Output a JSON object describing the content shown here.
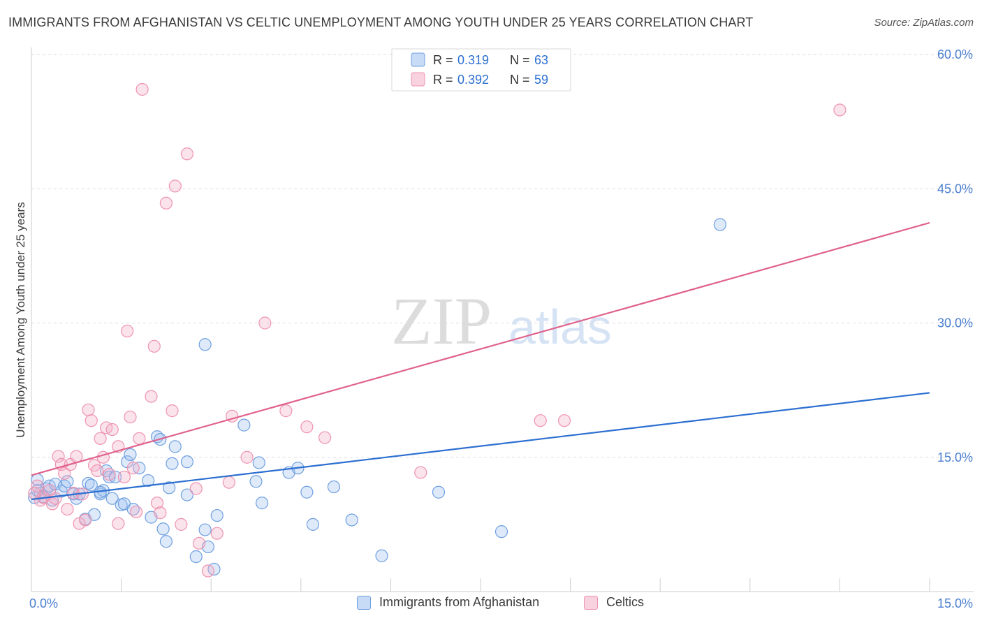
{
  "header": {
    "title": "IMMIGRANTS FROM AFGHANISTAN VS CELTIC UNEMPLOYMENT AMONG YOUTH UNDER 25 YEARS CORRELATION CHART",
    "source": "Source: ZipAtlas.com"
  },
  "watermark": {
    "zip": "ZIP",
    "atlas": "atlas"
  },
  "legend_box": {
    "r_label": "R =",
    "n_label": "N =",
    "rows": [
      {
        "r": "0.319",
        "n": "63"
      },
      {
        "r": "0.392",
        "n": "59"
      }
    ]
  },
  "chart_data": {
    "type": "scatter",
    "title": "IMMIGRANTS FROM AFGHANISTAN VS CELTIC UNEMPLOYMENT AMONG YOUTH UNDER 25 YEARS CORRELATION CHART",
    "xlabel": "",
    "ylabel": "Unemployment Among Youth under 25 years",
    "xlim": [
      0,
      15
    ],
    "ylim": [
      0,
      60
    ],
    "x_tick_labels": [
      "0.0%",
      "15.0%"
    ],
    "y_tick_values": [
      15,
      30,
      45,
      60
    ],
    "y_tick_labels": [
      "15.0%",
      "30.0%",
      "45.0%",
      "60.0%"
    ],
    "grid": true,
    "legend_position": "top-center",
    "series": [
      {
        "name": "Immigrants from Afghanistan",
        "color": "#6f9fe0",
        "fill": "rgba(160,196,240,0.35)",
        "line_color": "#2c6fd1",
        "r": 0.319,
        "n": 63,
        "trend": {
          "x": [
            0,
            15
          ],
          "y": [
            10.3,
            22.2
          ]
        },
        "points": [
          [
            0.1,
            12.5
          ],
          [
            0.15,
            11.0
          ],
          [
            0.2,
            10.6
          ],
          [
            0.25,
            11.5
          ],
          [
            0.3,
            11.8
          ],
          [
            0.35,
            10.2
          ],
          [
            0.4,
            12.0
          ],
          [
            0.5,
            11.2
          ],
          [
            0.55,
            11.8
          ],
          [
            0.6,
            12.3
          ],
          [
            0.7,
            10.9
          ],
          [
            0.75,
            10.4
          ],
          [
            0.8,
            10.9
          ],
          [
            0.9,
            8.1
          ],
          [
            0.95,
            12.1
          ],
          [
            1.0,
            11.9
          ],
          [
            1.05,
            8.6
          ],
          [
            1.15,
            10.9
          ],
          [
            1.2,
            11.3
          ],
          [
            1.25,
            13.5
          ],
          [
            1.3,
            12.8
          ],
          [
            1.35,
            10.4
          ],
          [
            1.4,
            12.8
          ],
          [
            1.5,
            9.7
          ],
          [
            1.55,
            9.8
          ],
          [
            1.6,
            14.5
          ],
          [
            1.65,
            15.3
          ],
          [
            1.7,
            9.2
          ],
          [
            1.8,
            13.8
          ],
          [
            1.95,
            12.4
          ],
          [
            2.0,
            8.3
          ],
          [
            2.1,
            17.3
          ],
          [
            2.2,
            7.0
          ],
          [
            2.25,
            5.6
          ],
          [
            2.3,
            11.6
          ],
          [
            2.35,
            14.3
          ],
          [
            2.4,
            16.2
          ],
          [
            2.6,
            14.5
          ],
          [
            2.6,
            10.8
          ],
          [
            2.75,
            3.9
          ],
          [
            2.9,
            6.9
          ],
          [
            2.95,
            5.0
          ],
          [
            3.1,
            8.5
          ],
          [
            3.55,
            18.6
          ],
          [
            3.75,
            12.3
          ],
          [
            3.8,
            14.4
          ],
          [
            3.85,
            9.9
          ],
          [
            4.3,
            13.3
          ],
          [
            4.45,
            13.8
          ],
          [
            4.6,
            11.1
          ],
          [
            4.7,
            7.5
          ],
          [
            5.05,
            11.7
          ],
          [
            5.35,
            8.0
          ],
          [
            5.85,
            4.0
          ],
          [
            6.8,
            11.1
          ],
          [
            7.85,
            6.7
          ],
          [
            11.5,
            41.0
          ],
          [
            2.9,
            27.6
          ],
          [
            0.05,
            10.5
          ],
          [
            0.1,
            11.3
          ],
          [
            1.15,
            11.1
          ],
          [
            2.15,
            17.0
          ],
          [
            3.05,
            2.5
          ]
        ]
      },
      {
        "name": "Celtics",
        "color": "#ee93b0",
        "fill": "rgba(244,174,198,0.35)",
        "line_color": "#e0628c",
        "r": 0.392,
        "n": 59,
        "trend": {
          "x": [
            0,
            15
          ],
          "y": [
            13.0,
            41.2
          ]
        },
        "points": [
          [
            0.1,
            11.8
          ],
          [
            0.15,
            10.2
          ],
          [
            0.2,
            10.5
          ],
          [
            0.3,
            11.3
          ],
          [
            0.35,
            9.8
          ],
          [
            0.4,
            10.4
          ],
          [
            0.45,
            15.1
          ],
          [
            0.5,
            14.2
          ],
          [
            0.55,
            13.2
          ],
          [
            0.6,
            9.2
          ],
          [
            0.65,
            14.2
          ],
          [
            0.7,
            11.0
          ],
          [
            0.75,
            15.1
          ],
          [
            0.8,
            7.6
          ],
          [
            0.85,
            10.9
          ],
          [
            0.9,
            8.0
          ],
          [
            0.95,
            20.3
          ],
          [
            1.0,
            19.1
          ],
          [
            1.05,
            14.1
          ],
          [
            1.1,
            13.5
          ],
          [
            1.15,
            17.1
          ],
          [
            1.2,
            15.0
          ],
          [
            1.25,
            18.3
          ],
          [
            1.3,
            13.1
          ],
          [
            1.35,
            18.1
          ],
          [
            1.45,
            16.2
          ],
          [
            1.45,
            7.6
          ],
          [
            1.55,
            12.8
          ],
          [
            1.6,
            29.1
          ],
          [
            1.65,
            19.5
          ],
          [
            1.7,
            13.8
          ],
          [
            1.75,
            8.9
          ],
          [
            1.8,
            17.1
          ],
          [
            1.85,
            56.1
          ],
          [
            2.0,
            21.8
          ],
          [
            2.05,
            27.4
          ],
          [
            2.1,
            9.9
          ],
          [
            2.15,
            8.8
          ],
          [
            2.25,
            43.4
          ],
          [
            2.35,
            20.2
          ],
          [
            2.4,
            45.3
          ],
          [
            2.5,
            7.5
          ],
          [
            2.6,
            48.9
          ],
          [
            2.75,
            11.5
          ],
          [
            2.8,
            5.4
          ],
          [
            2.95,
            2.3
          ],
          [
            3.1,
            6.5
          ],
          [
            3.3,
            12.2
          ],
          [
            3.35,
            19.6
          ],
          [
            3.6,
            15.0
          ],
          [
            3.9,
            30.0
          ],
          [
            4.25,
            20.2
          ],
          [
            4.6,
            18.4
          ],
          [
            4.9,
            17.2
          ],
          [
            6.5,
            13.3
          ],
          [
            8.5,
            19.1
          ],
          [
            8.9,
            19.1
          ],
          [
            13.5,
            53.8
          ],
          [
            0.05,
            11.0
          ]
        ]
      }
    ]
  },
  "bottom_legend": [
    {
      "label": "Immigrants from Afghanistan",
      "color": "#6f9fe0",
      "fill": "#c7dbf6"
    },
    {
      "label": "Celtics",
      "color": "#ee93b0",
      "fill": "#f9d2df"
    }
  ]
}
